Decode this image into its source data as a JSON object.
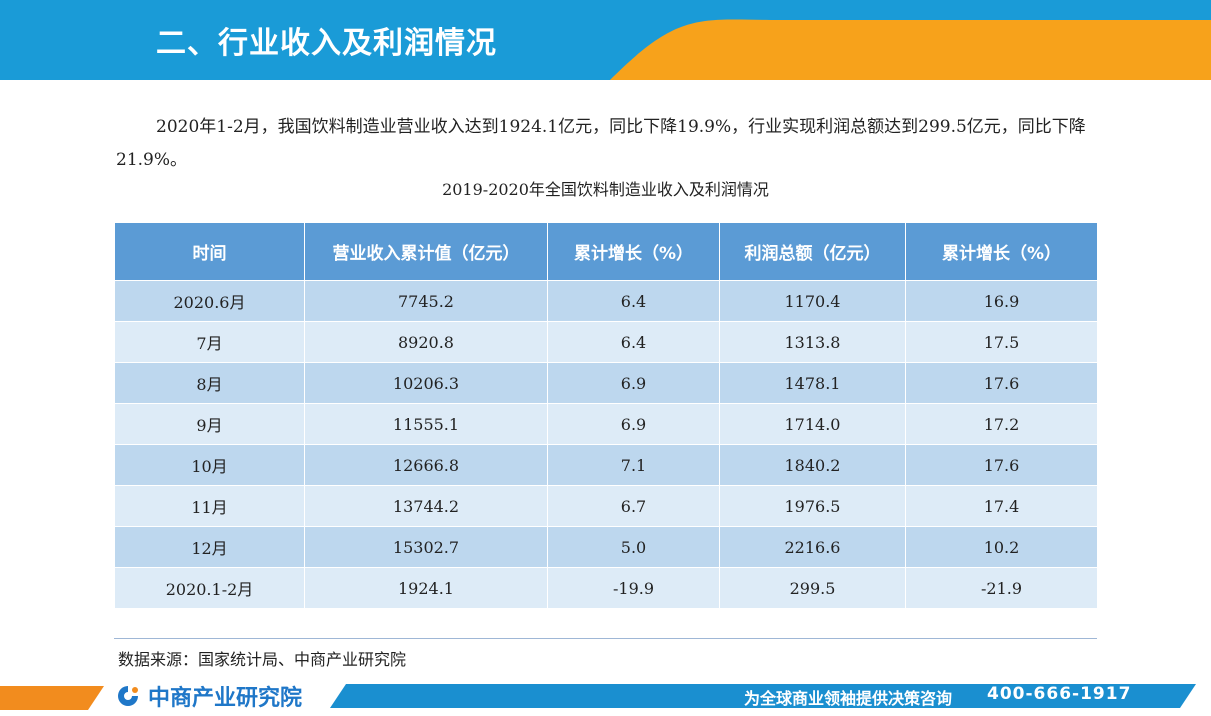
{
  "header": {
    "title": "二、行业收入及利润情况"
  },
  "intro": "2020年1-2月，我国饮料制造业营业收入达到1924.1亿元，同比下降19.9%，行业实现利润总额达到299.5亿元，同比下降21.9%。",
  "caption": "2019-2020年全国饮料制造业收入及利润情况",
  "table": {
    "headers": [
      "时间",
      "营业收入累计值（亿元）",
      "累计增长（%）",
      "利润总额（亿元）",
      "累计增长（%）"
    ],
    "rows": [
      [
        "2020.6月",
        "7745.2",
        "6.4",
        "1170.4",
        "16.9"
      ],
      [
        "7月",
        "8920.8",
        "6.4",
        "1313.8",
        "17.5"
      ],
      [
        "8月",
        "10206.3",
        "6.9",
        "1478.1",
        "17.6"
      ],
      [
        "9月",
        "11555.1",
        "6.9",
        "1714.0",
        "17.2"
      ],
      [
        "10月",
        "12666.8",
        "7.1",
        "1840.2",
        "17.6"
      ],
      [
        "11月",
        "13744.2",
        "6.7",
        "1976.5",
        "17.4"
      ],
      [
        "12月",
        "15302.7",
        "5.0",
        "2216.6",
        "10.2"
      ],
      [
        "2020.1-2月",
        "1924.1",
        "-19.9",
        "299.5",
        "-21.9"
      ]
    ]
  },
  "source": "数据来源：国家统计局、中商产业研究院",
  "footer": {
    "brand": "中商产业研究院",
    "slogan": "为全球商业领袖提供决策咨询",
    "phone": "400-666-1917"
  },
  "colors": {
    "header_blue": "#1a9bd7",
    "header_orange": "#f7a21b",
    "table_header": "#5b9bd5",
    "row_dark": "#bdd7ee",
    "row_light": "#ddebf7",
    "footer_blue": "#1a8fd0",
    "footer_orange": "#f28c1e"
  },
  "icons": {
    "brand_logo": "zhongshang-logo-icon"
  }
}
